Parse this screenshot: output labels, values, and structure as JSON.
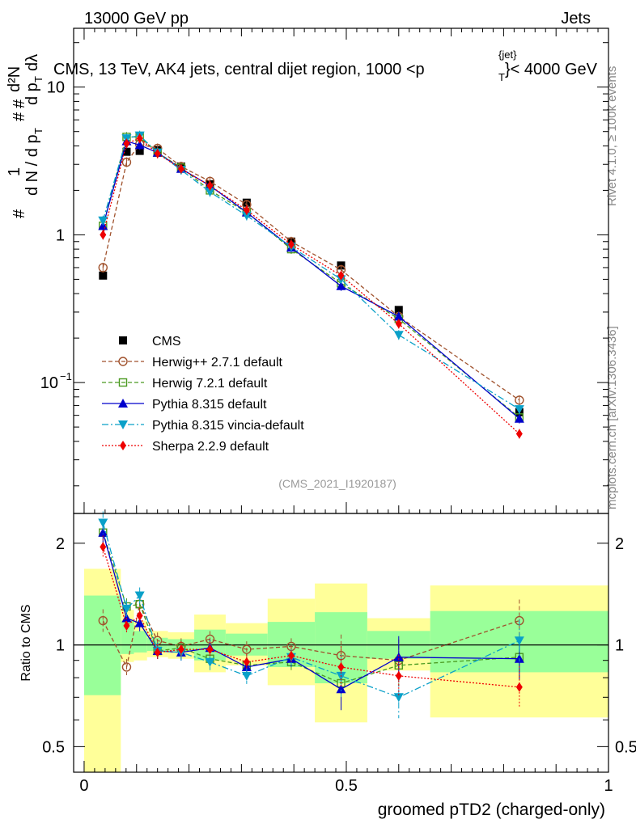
{
  "header": {
    "left": "13000 GeV pp",
    "right": "Jets"
  },
  "side_labels": {
    "rivet": "Rivet 4.1.0, ≥ 100k events",
    "mcplots": "mcplots.cern.ch [arXiv:1306.3436]"
  },
  "colors": {
    "cms": "#000000",
    "herwigpp": "#a0522d",
    "herwig7": "#4a9a20",
    "pythia": "#0000cc",
    "vincia": "#0aa0c8",
    "sherpa": "#ee0000",
    "band_yellow": "#ffff99",
    "band_green": "#99ff99"
  },
  "chart_data": [
    {
      "type": "line",
      "name": "main",
      "title": "CMS, 13 TeV, AK4 jets, central dijet region, 1000 < p_T^{jet} < 4000 GeV",
      "title_parts": {
        "pre": "CMS, 13 TeV, AK4 jets, central dijet region, 1000 <p",
        "sub": "T",
        "sup": "{jet}",
        "post": "}< 4000 GeV"
      },
      "ylabel_parts": {
        "hash1": "#",
        "one": "1",
        "dn_dpt": "d N / d p",
        "sub_t": "T",
        "hash2": "#",
        "d2n": "d²N",
        "hash3": "#",
        "dpt_dl": "d p",
        "sub_t2": "T",
        "dl": " dλ"
      },
      "yscale": "log",
      "ylim": [
        0.013,
        25
      ],
      "xlim": [
        -0.02,
        1.0
      ],
      "yticks": [
        {
          "v": 10,
          "label": "10"
        },
        {
          "v": 1,
          "label": "1"
        },
        {
          "v": 0.1,
          "label": "10",
          "sup": "−1"
        }
      ],
      "watermark": "(CMS_2021_I1920187)",
      "legend_position": "lower-left",
      "legend": [
        "CMS",
        "Herwig++ 2.7.1 default",
        "Herwig 7.2.1 default",
        "Pythia 8.315 default",
        "Pythia 8.315 vincia-default",
        "Sherpa 2.2.9 default"
      ],
      "x": [
        0.036,
        0.081,
        0.106,
        0.14,
        0.185,
        0.24,
        0.31,
        0.395,
        0.49,
        0.6,
        0.83
      ],
      "series": [
        {
          "name": "CMS",
          "values": [
            0.53,
            3.65,
            3.7,
            3.75,
            2.9,
            2.2,
            1.65,
            0.9,
            0.62,
            0.31,
            0.063
          ]
        },
        {
          "name": "Herwig++ 2.7.1 default",
          "values": [
            0.6,
            3.1,
            4.1,
            3.85,
            2.9,
            2.3,
            1.6,
            0.9,
            0.58,
            0.28,
            0.076
          ]
        },
        {
          "name": "Herwig 7.2.1 default",
          "values": [
            1.15,
            4.6,
            4.6,
            3.6,
            2.85,
            2.0,
            1.42,
            0.8,
            0.47,
            0.27,
            0.058
          ]
        },
        {
          "name": "Pythia 8.315 default",
          "values": [
            1.15,
            4.3,
            4.05,
            3.6,
            2.8,
            2.15,
            1.42,
            0.82,
            0.45,
            0.28,
            0.057
          ]
        },
        {
          "name": "Pythia 8.315 vincia-default",
          "values": [
            1.25,
            4.5,
            4.7,
            3.6,
            2.75,
            1.95,
            1.35,
            0.83,
            0.5,
            0.21,
            0.066
          ]
        },
        {
          "name": "Sherpa 2.2.9 default",
          "values": [
            1.0,
            4.15,
            4.5,
            3.55,
            2.8,
            2.15,
            1.47,
            0.86,
            0.53,
            0.25,
            0.045
          ]
        }
      ]
    },
    {
      "type": "line",
      "name": "ratio",
      "ylabel": "Ratio to CMS",
      "yscale": "log",
      "ylim": [
        0.42,
        2.45
      ],
      "xlim": [
        -0.02,
        1.0
      ],
      "xlabel": "groomed pTD2 (charged-only)",
      "xticks": [
        {
          "v": 0,
          "label": "0"
        },
        {
          "v": 0.5,
          "label": "0.5"
        },
        {
          "v": 1,
          "label": "1"
        }
      ],
      "yticks": [
        {
          "v": 2,
          "label": "2"
        },
        {
          "v": 1,
          "label": "1"
        },
        {
          "v": 0.5,
          "label": "0.5"
        }
      ],
      "bins": [
        {
          "lo": 0.0,
          "hi": 0.07,
          "yellow": [
            0.3,
            1.68
          ],
          "green": [
            0.71,
            1.4
          ]
        },
        {
          "lo": 0.07,
          "hi": 0.095,
          "yellow": [
            0.89,
            1.27
          ],
          "green": [
            0.94,
            1.18
          ]
        },
        {
          "lo": 0.095,
          "hi": 0.12,
          "yellow": [
            0.9,
            1.18
          ],
          "green": [
            0.95,
            1.1
          ]
        },
        {
          "lo": 0.12,
          "hi": 0.16,
          "yellow": [
            0.92,
            1.1
          ],
          "green": [
            0.96,
            1.05
          ]
        },
        {
          "lo": 0.16,
          "hi": 0.21,
          "yellow": [
            0.91,
            1.09
          ],
          "green": [
            0.96,
            1.04
          ]
        },
        {
          "lo": 0.21,
          "hi": 0.27,
          "yellow": [
            0.83,
            1.23
          ],
          "green": [
            0.9,
            1.11
          ]
        },
        {
          "lo": 0.27,
          "hi": 0.35,
          "yellow": [
            0.87,
            1.16
          ],
          "green": [
            0.93,
            1.08
          ]
        },
        {
          "lo": 0.35,
          "hi": 0.44,
          "yellow": [
            0.76,
            1.37
          ],
          "green": [
            0.86,
            1.17
          ]
        },
        {
          "lo": 0.44,
          "hi": 0.54,
          "yellow": [
            0.59,
            1.52
          ],
          "green": [
            0.77,
            1.25
          ]
        },
        {
          "lo": 0.54,
          "hi": 0.66,
          "yellow": [
            0.84,
            1.2
          ],
          "green": [
            0.91,
            1.1
          ]
        },
        {
          "lo": 0.66,
          "hi": 1.0,
          "yellow": [
            0.61,
            1.5
          ],
          "green": [
            0.83,
            1.26
          ]
        }
      ],
      "x": [
        0.036,
        0.081,
        0.106,
        0.14,
        0.185,
        0.24,
        0.31,
        0.395,
        0.49,
        0.6,
        0.83
      ],
      "series": [
        {
          "name": "Herwig++ 2.7.1 default",
          "values": [
            1.18,
            0.86,
            1.32,
            1.03,
            0.99,
            1.04,
            0.97,
            0.99,
            0.93,
            0.9,
            1.18
          ]
        },
        {
          "name": "Herwig 7.2.1 default",
          "values": [
            2.15,
            1.3,
            1.32,
            0.96,
            0.98,
            0.91,
            0.87,
            0.89,
            0.77,
            0.87,
            0.92
          ]
        },
        {
          "name": "Pythia 8.315 default",
          "values": [
            2.15,
            1.2,
            1.16,
            0.96,
            0.95,
            0.98,
            0.86,
            0.91,
            0.74,
            0.92,
            0.91
          ]
        },
        {
          "name": "Pythia 8.315 vincia-default",
          "values": [
            2.3,
            1.28,
            1.4,
            0.96,
            0.95,
            0.89,
            0.81,
            0.92,
            0.81,
            0.7,
            1.03
          ]
        },
        {
          "name": "Sherpa 2.2.9 default",
          "values": [
            1.95,
            1.14,
            1.22,
            0.95,
            0.97,
            0.97,
            0.89,
            0.93,
            0.86,
            0.81,
            0.75
          ]
        }
      ],
      "error_hint": "approximate"
    }
  ]
}
